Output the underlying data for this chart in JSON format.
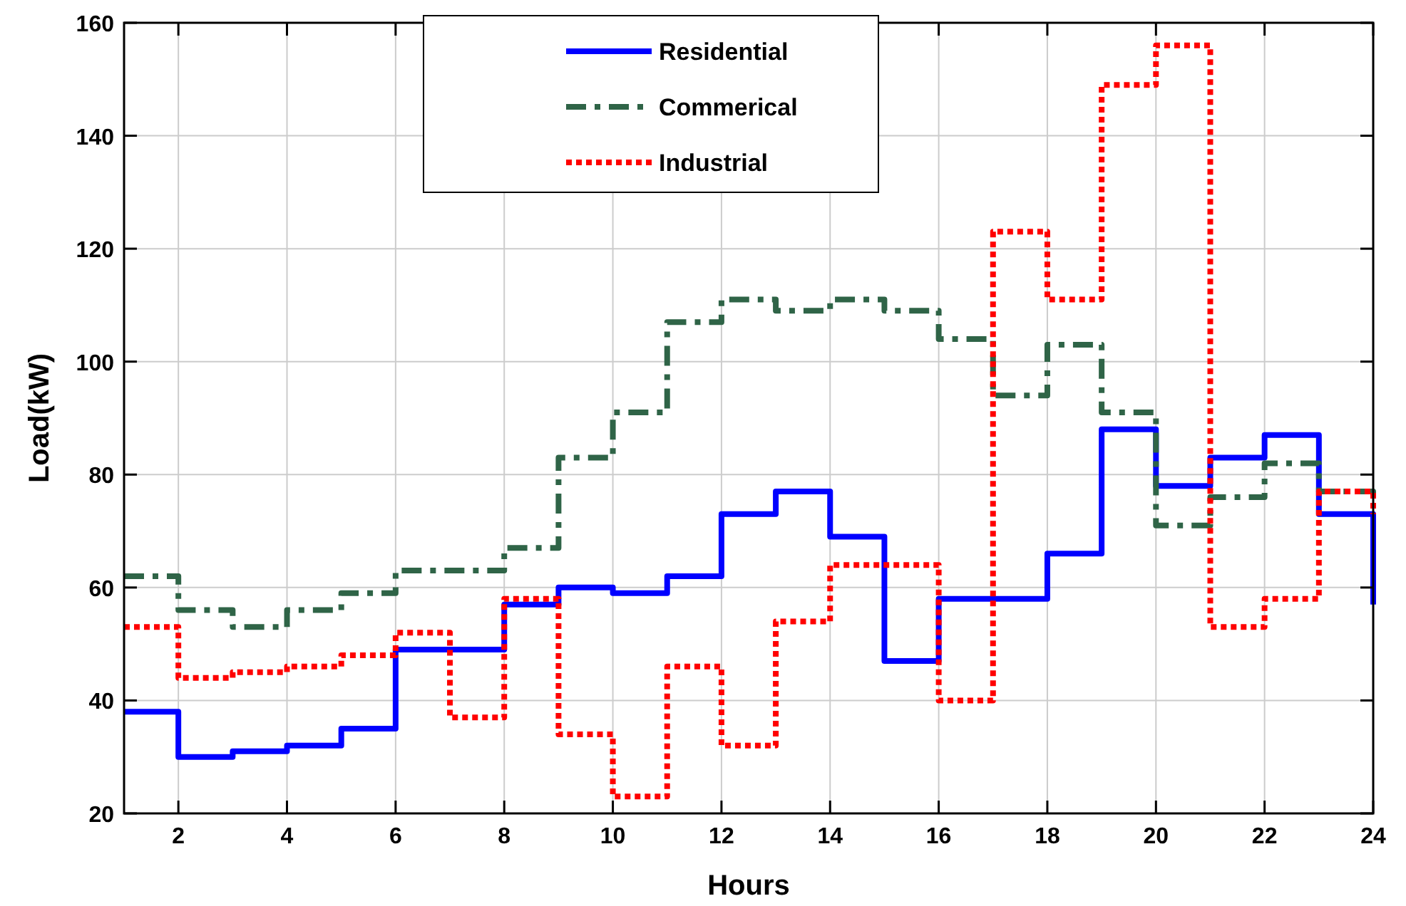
{
  "chart_data": {
    "type": "step",
    "xlabel": "Hours",
    "ylabel": "Load(kW)",
    "x": [
      1,
      2,
      3,
      4,
      5,
      6,
      7,
      8,
      9,
      10,
      11,
      12,
      13,
      14,
      15,
      16,
      17,
      18,
      19,
      20,
      21,
      22,
      23,
      24
    ],
    "series": [
      {
        "name": "Residential",
        "color": "#0000ff",
        "line_style": "solid",
        "values": [
          38,
          30,
          31,
          32,
          35,
          49,
          49,
          57,
          60,
          59,
          62,
          73,
          77,
          69,
          47,
          58,
          58,
          66,
          88,
          78,
          83,
          87,
          73,
          57
        ]
      },
      {
        "name": "Commerical",
        "color": "#2f6447",
        "line_style": "dashed",
        "values": [
          62,
          56,
          53,
          56,
          59,
          63,
          63,
          67,
          83,
          91,
          107,
          111,
          109,
          111,
          109,
          104,
          94,
          103,
          91,
          71,
          76,
          82,
          77,
          74
        ]
      },
      {
        "name": "Industrial",
        "color": "#ff0000",
        "line_style": "dotted",
        "values": [
          53,
          44,
          45,
          46,
          48,
          52,
          37,
          58,
          34,
          23,
          46,
          32,
          54,
          64,
          64,
          40,
          123,
          111,
          149,
          156,
          53,
          58,
          77,
          73
        ]
      }
    ],
    "xlim": [
      1,
      24
    ],
    "xticks": [
      2,
      4,
      6,
      8,
      10,
      12,
      14,
      16,
      18,
      20,
      22,
      24
    ],
    "ylim": [
      20,
      160
    ],
    "yticks": [
      20,
      40,
      60,
      80,
      100,
      120,
      140,
      160
    ],
    "grid": true,
    "legend": "top"
  }
}
